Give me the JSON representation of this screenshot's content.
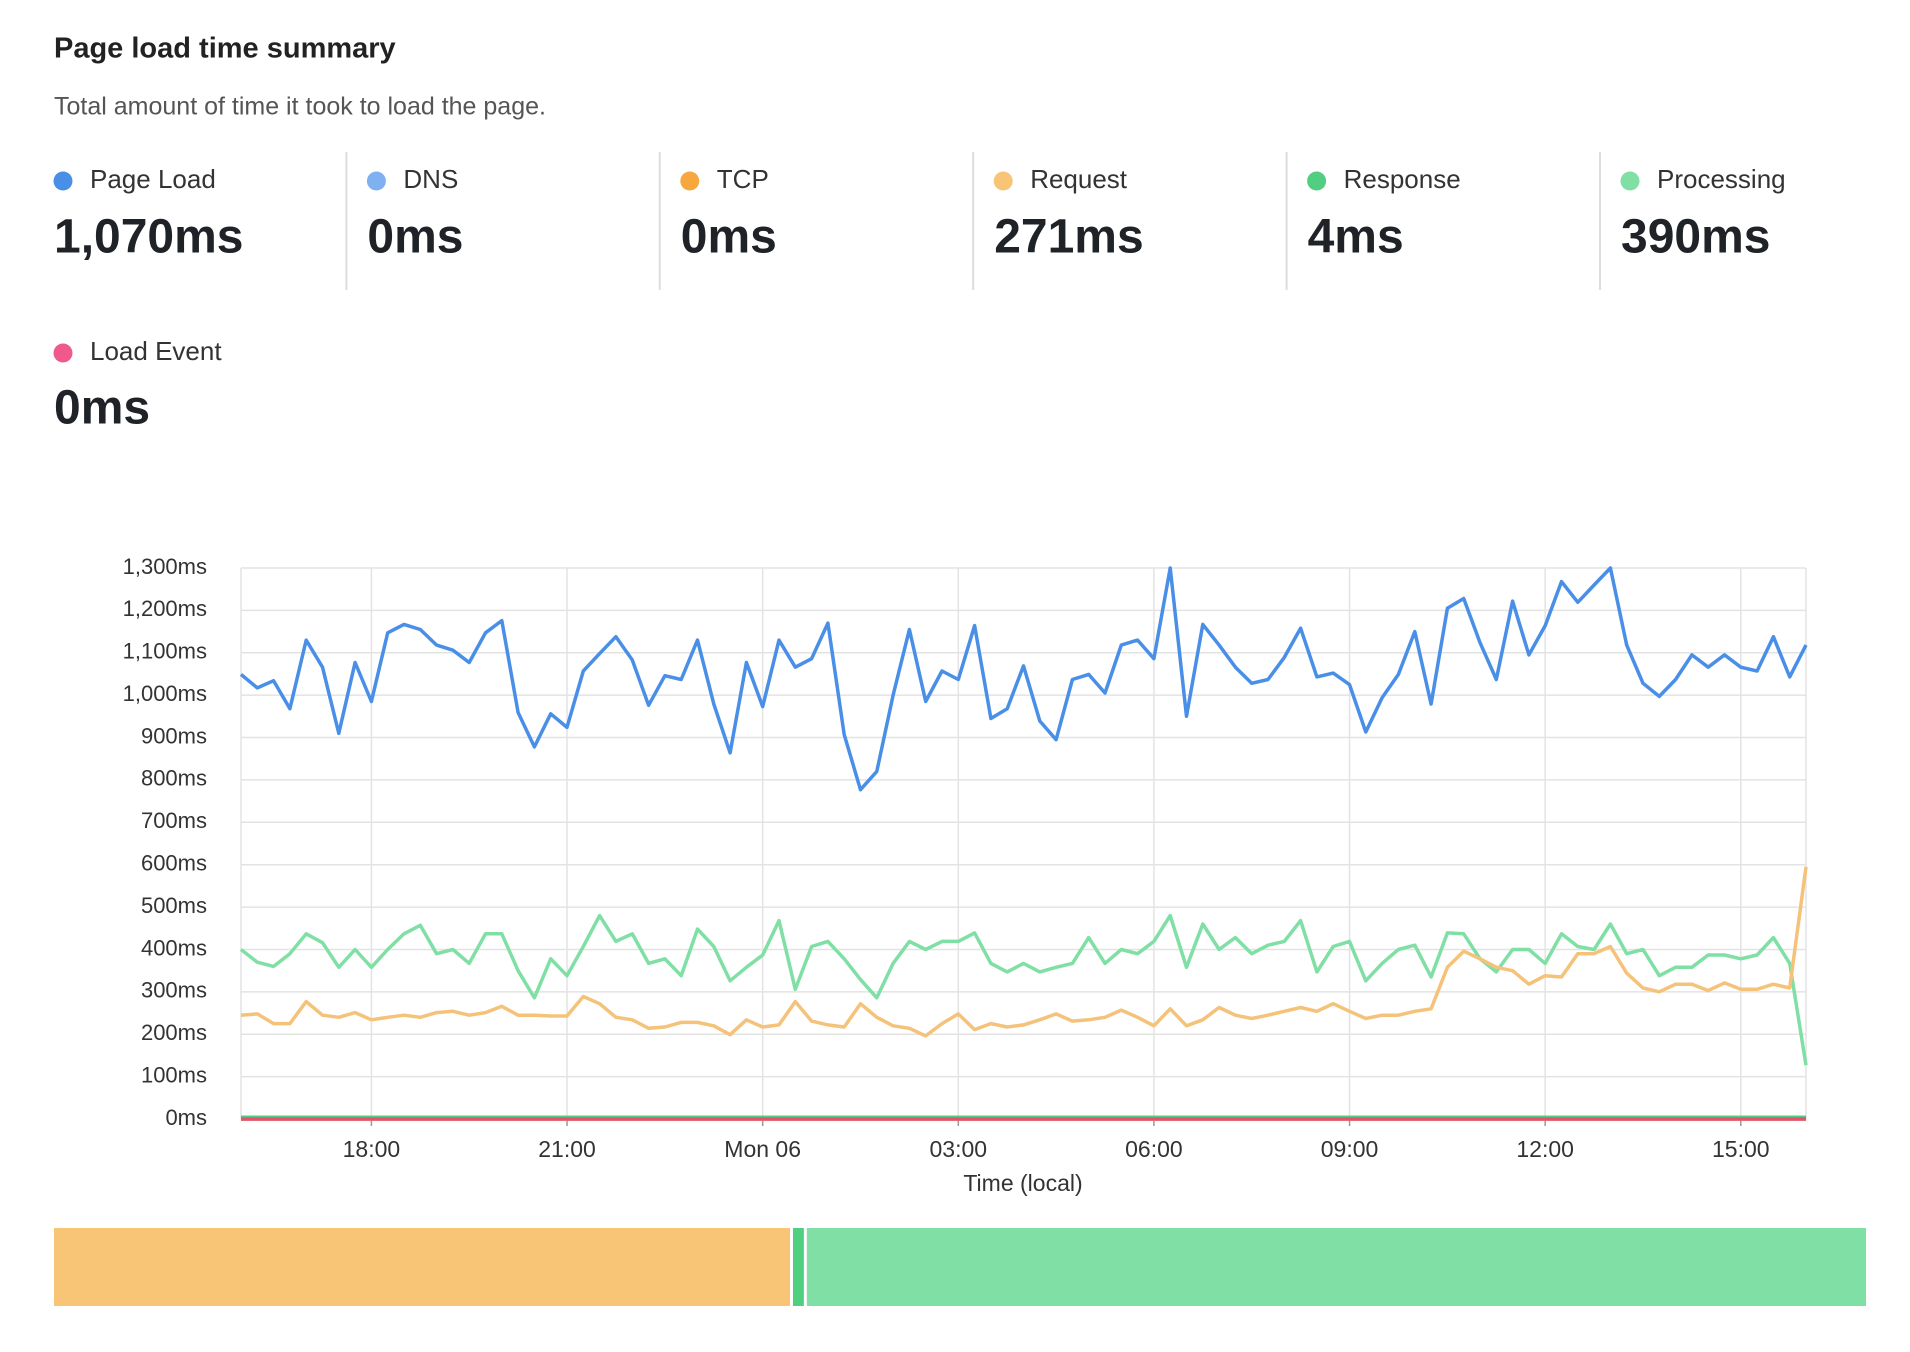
{
  "header": {
    "title": "Page load time summary",
    "subtitle": "Total amount of time it took to load the page."
  },
  "metrics": [
    {
      "label": "Page Load",
      "value": 1070,
      "value_label": "1,070ms",
      "color": "#4a8fe7"
    },
    {
      "label": "DNS",
      "value": 0,
      "value_label": "0ms",
      "color": "#7fb0f2"
    },
    {
      "label": "TCP",
      "value": 0,
      "value_label": "0ms",
      "color": "#f6a83f"
    },
    {
      "label": "Request",
      "value": 271,
      "value_label": "271ms",
      "color": "#f8c475"
    },
    {
      "label": "Response",
      "value": 4,
      "value_label": "4ms",
      "color": "#4fcf7f"
    },
    {
      "label": "Processing",
      "value": 390,
      "value_label": "390ms",
      "color": "#7fdfa4"
    },
    {
      "label": "Load Event",
      "value": 0,
      "value_label": "0ms",
      "color": "#ef5a8a"
    }
  ],
  "chart_data": {
    "type": "line",
    "xlabel": "Time (local)",
    "grid": true,
    "xlim": [
      16,
      40
    ],
    "xticks": [
      {
        "value": 18,
        "label": "18:00"
      },
      {
        "value": 21,
        "label": "21:00"
      },
      {
        "value": 24,
        "label": "Mon 06"
      },
      {
        "value": 27,
        "label": "03:00"
      },
      {
        "value": 30,
        "label": "06:00"
      },
      {
        "value": 33,
        "label": "09:00"
      },
      {
        "value": 36,
        "label": "12:00"
      },
      {
        "value": 39,
        "label": "15:00"
      }
    ],
    "ylim": [
      0,
      1300
    ],
    "yticks": [
      {
        "value": 0,
        "label": "0ms"
      },
      {
        "value": 100,
        "label": "100ms"
      },
      {
        "value": 200,
        "label": "200ms"
      },
      {
        "value": 300,
        "label": "300ms"
      },
      {
        "value": 400,
        "label": "400ms"
      },
      {
        "value": 500,
        "label": "500ms"
      },
      {
        "value": 600,
        "label": "600ms"
      },
      {
        "value": 700,
        "label": "700ms"
      },
      {
        "value": 800,
        "label": "800ms"
      },
      {
        "value": 900,
        "label": "900ms"
      },
      {
        "value": 1000,
        "label": "1,000ms"
      },
      {
        "value": 1100,
        "label": "1,100ms"
      },
      {
        "value": 1200,
        "label": "1,200ms"
      },
      {
        "value": 1300,
        "label": "1,300ms"
      }
    ],
    "x": [
      16,
      16.25,
      16.5,
      16.75,
      17,
      17.25,
      17.5,
      17.75,
      18,
      18.25,
      18.5,
      18.75,
      19,
      19.25,
      19.5,
      19.75,
      20,
      20.25,
      20.5,
      20.75,
      21,
      21.25,
      21.5,
      21.75,
      22,
      22.25,
      22.5,
      22.75,
      23,
      23.25,
      23.5,
      23.75,
      24,
      24.25,
      24.5,
      24.75,
      25,
      25.25,
      25.5,
      25.75,
      26,
      26.25,
      26.5,
      26.75,
      27,
      27.25,
      27.5,
      27.75,
      28,
      28.25,
      28.5,
      28.75,
      29,
      29.25,
      29.5,
      29.75,
      30,
      30.25,
      30.5,
      30.75,
      31,
      31.25,
      31.5,
      31.75,
      32,
      32.25,
      32.5,
      32.75,
      33,
      33.25,
      33.5,
      33.75,
      34,
      34.25,
      34.5,
      34.75,
      35,
      35.25,
      35.5,
      35.75,
      36,
      36.25,
      36.5,
      36.75,
      37,
      37.25,
      37.5,
      37.75,
      38,
      38.25,
      38.5,
      38.75,
      39,
      39.25,
      39.5,
      39.75,
      40
    ],
    "series": [
      {
        "color": "#4a8fe7",
        "values": [
          1049,
          1017,
          1034,
          968,
          1130,
          1066,
          910,
          1077,
          985,
          1147,
          1167,
          1155,
          1118,
          1106,
          1077,
          1147,
          1176,
          959,
          878,
          956,
          924,
          1057,
          1098,
          1138,
          1083,
          976,
          1046,
          1037,
          1130,
          979,
          864,
          1077,
          973,
          1130,
          1066,
          1086,
          1170,
          907,
          777,
          820,
          1000,
          1155,
          985,
          1057,
          1037,
          1164,
          945,
          968,
          1069,
          939,
          895,
          1037,
          1049,
          1005,
          1118,
          1130,
          1086,
          1300,
          950,
          1167,
          1118,
          1066,
          1028,
          1037,
          1089,
          1158,
          1043,
          1052,
          1025,
          913,
          994,
          1049,
          1150,
          979,
          1205,
          1228,
          1124,
          1037,
          1222,
          1095,
          1164,
          1268,
          1219,
          1260,
          1300,
          1118,
          1028,
          997,
          1037,
          1095,
          1066,
          1095,
          1066,
          1057,
          1138,
          1043,
          1118
        ]
      },
      {
        "color": "#7fb0f2",
        "values": [
          0,
          0,
          0,
          0,
          0,
          0,
          0,
          0,
          0,
          0,
          0,
          0,
          0,
          0,
          0,
          0,
          0,
          0,
          0,
          0,
          0,
          0,
          0,
          0,
          0,
          0,
          0,
          0,
          0,
          0,
          0,
          0,
          0,
          0,
          0,
          0,
          0,
          0,
          0,
          0,
          0,
          0,
          0,
          0,
          0,
          0,
          0,
          0,
          0,
          0,
          0,
          0,
          0,
          0,
          0,
          0,
          0,
          0,
          0,
          0,
          0,
          0,
          0,
          0,
          0,
          0,
          0,
          0,
          0,
          0,
          0,
          0,
          0,
          0,
          0,
          0,
          0,
          0,
          0,
          0,
          0,
          0,
          0,
          0,
          0,
          0,
          0,
          0,
          0,
          0,
          0,
          0,
          0,
          0,
          0,
          0,
          0
        ]
      },
      {
        "color": "#f6a83f",
        "values": [
          0,
          0,
          0,
          0,
          0,
          0,
          0,
          0,
          0,
          0,
          0,
          0,
          0,
          0,
          0,
          0,
          0,
          0,
          0,
          0,
          0,
          0,
          0,
          0,
          0,
          0,
          0,
          0,
          0,
          0,
          0,
          0,
          0,
          0,
          0,
          0,
          0,
          0,
          0,
          0,
          0,
          0,
          0,
          0,
          0,
          0,
          0,
          0,
          0,
          0,
          0,
          0,
          0,
          0,
          0,
          0,
          0,
          0,
          0,
          0,
          0,
          0,
          0,
          0,
          0,
          0,
          0,
          0,
          0,
          0,
          0,
          0,
          0,
          0,
          0,
          0,
          0,
          0,
          0,
          0,
          0,
          0,
          0,
          0,
          0,
          0,
          0,
          0,
          0,
          0,
          0,
          0,
          0,
          0,
          0,
          0,
          0
        ]
      },
      {
        "color": "#f5c27a",
        "values": [
          245,
          248,
          225,
          225,
          277,
          245,
          240,
          251,
          234,
          240,
          245,
          240,
          251,
          254,
          245,
          251,
          266,
          245,
          245,
          243,
          243,
          289,
          272,
          240,
          234,
          214,
          217,
          228,
          228,
          220,
          199,
          234,
          217,
          222,
          277,
          231,
          222,
          217,
          272,
          240,
          220,
          214,
          196,
          225,
          248,
          211,
          225,
          217,
          222,
          234,
          248,
          231,
          234,
          240,
          257,
          240,
          220,
          260,
          220,
          234,
          263,
          245,
          237,
          245,
          254,
          263,
          254,
          272,
          254,
          237,
          245,
          245,
          254,
          260,
          358,
          396,
          378,
          358,
          350,
          318,
          338,
          335,
          390,
          390,
          407,
          344,
          309,
          300,
          318,
          318,
          303,
          321,
          306,
          306,
          318,
          309,
          595
        ]
      },
      {
        "color": "#4fcf7f",
        "values": [
          4,
          4,
          4,
          4,
          4,
          4,
          4,
          4,
          4,
          4,
          4,
          4,
          4,
          4,
          4,
          4,
          4,
          4,
          4,
          4,
          4,
          4,
          4,
          4,
          4,
          4,
          4,
          4,
          4,
          4,
          4,
          4,
          4,
          4,
          4,
          4,
          4,
          4,
          4,
          4,
          4,
          4,
          4,
          4,
          4,
          4,
          4,
          4,
          4,
          4,
          4,
          4,
          4,
          4,
          4,
          4,
          4,
          4,
          4,
          4,
          4,
          4,
          4,
          4,
          4,
          4,
          4,
          4,
          4,
          4,
          4,
          4,
          4,
          4,
          4,
          4,
          4,
          4,
          4,
          4,
          4,
          4,
          4,
          4,
          4,
          4,
          4,
          4,
          4,
          4,
          4,
          4,
          4,
          4,
          4,
          4,
          4
        ]
      },
      {
        "color": "#7fdfa4",
        "values": [
          400,
          370,
          360,
          390,
          437,
          416,
          358,
          400,
          358,
          400,
          437,
          457,
          390,
          400,
          367,
          437,
          437,
          350,
          286,
          378,
          338,
          407,
          480,
          419,
          437,
          367,
          378,
          338,
          448,
          407,
          326,
          358,
          387,
          468,
          306,
          407,
          419,
          378,
          329,
          286,
          367,
          419,
          400,
          419,
          419,
          439,
          367,
          347,
          367,
          347,
          358,
          367,
          428,
          367,
          400,
          390,
          419,
          480,
          358,
          460,
          400,
          428,
          390,
          410,
          419,
          468,
          347,
          407,
          419,
          326,
          367,
          400,
          410,
          335,
          439,
          437,
          378,
          347,
          400,
          400,
          367,
          437,
          407,
          400,
          460,
          390,
          400,
          338,
          358,
          358,
          387,
          387,
          378,
          387,
          428,
          367,
          127
        ]
      },
      {
        "color": "#e8506f",
        "values": [
          0,
          0,
          0,
          0,
          0,
          0,
          0,
          0,
          0,
          0,
          0,
          0,
          0,
          0,
          0,
          0,
          0,
          0,
          0,
          0,
          0,
          0,
          0,
          0,
          0,
          0,
          0,
          0,
          0,
          0,
          0,
          0,
          0,
          0,
          0,
          0,
          0,
          0,
          0,
          0,
          0,
          0,
          0,
          0,
          0,
          0,
          0,
          0,
          0,
          0,
          0,
          0,
          0,
          0,
          0,
          0,
          0,
          0,
          0,
          0,
          0,
          0,
          0,
          0,
          0,
          0,
          0,
          0,
          0,
          0,
          0,
          0,
          0,
          0,
          0,
          0,
          0,
          0,
          0,
          0,
          0,
          0,
          0,
          0,
          0,
          0,
          0,
          0,
          0,
          0,
          0,
          0,
          0,
          0,
          0,
          0,
          0
        ]
      }
    ]
  }
}
